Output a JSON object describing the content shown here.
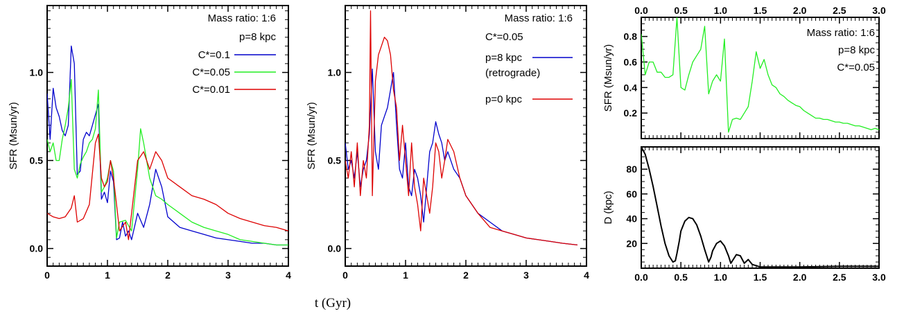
{
  "figure": {
    "xlabel": "t (Gyr)"
  },
  "colors": {
    "blue": "#0000cc",
    "green": "#22ee22",
    "red": "#dd0000",
    "black": "#000000"
  },
  "chart_data": [
    {
      "id": "p1",
      "type": "line",
      "ylabel": "SFR (Msun/yr)",
      "xlim": [
        0,
        4
      ],
      "ylim": [
        -0.1,
        1.38
      ],
      "xticks": [
        "0",
        "1",
        "2",
        "3",
        "4"
      ],
      "yticks": [
        "0.0",
        "0.5",
        "1.0"
      ],
      "annotations": [
        "Mass ratio: 1:6",
        "p=8 kpc"
      ],
      "legend_position": "top-right",
      "series": [
        {
          "name": "C*=0.1",
          "color": "blue",
          "x": [
            0,
            0.05,
            0.1,
            0.15,
            0.2,
            0.25,
            0.3,
            0.35,
            0.4,
            0.45,
            0.5,
            0.55,
            0.6,
            0.65,
            0.7,
            0.75,
            0.8,
            0.85,
            0.9,
            0.95,
            1.0,
            1.05,
            1.1,
            1.15,
            1.2,
            1.25,
            1.3,
            1.35,
            1.4,
            1.5,
            1.6,
            1.7,
            1.8,
            1.9,
            2.0,
            2.2,
            2.4,
            2.6,
            2.8,
            3.0,
            3.2,
            3.4,
            3.6,
            3.8,
            4.0
          ],
          "y": [
            0.88,
            0.62,
            0.91,
            0.8,
            0.75,
            0.67,
            0.64,
            0.7,
            1.15,
            1.05,
            0.42,
            0.44,
            0.62,
            0.66,
            0.64,
            0.7,
            0.76,
            0.82,
            0.28,
            0.32,
            0.26,
            0.44,
            0.38,
            0.05,
            0.06,
            0.15,
            0.07,
            0.1,
            0.05,
            0.2,
            0.12,
            0.25,
            0.45,
            0.35,
            0.18,
            0.12,
            0.1,
            0.08,
            0.06,
            0.05,
            0.04,
            0.03,
            0.03,
            0.02,
            0.02
          ]
        },
        {
          "name": "C*=0.05",
          "color": "green",
          "x": [
            0,
            0.05,
            0.1,
            0.15,
            0.2,
            0.25,
            0.3,
            0.35,
            0.4,
            0.45,
            0.5,
            0.55,
            0.6,
            0.65,
            0.7,
            0.75,
            0.8,
            0.85,
            0.9,
            0.95,
            1.0,
            1.05,
            1.1,
            1.15,
            1.2,
            1.3,
            1.4,
            1.5,
            1.55,
            1.6,
            1.7,
            1.8,
            1.9,
            2.0,
            2.2,
            2.4,
            2.6,
            2.8,
            3.0,
            3.2,
            3.4,
            3.6,
            3.8,
            4.0
          ],
          "y": [
            0.62,
            0.55,
            0.6,
            0.5,
            0.5,
            0.62,
            0.7,
            0.8,
            0.96,
            0.45,
            0.4,
            0.48,
            0.52,
            0.55,
            0.6,
            0.62,
            0.68,
            0.9,
            0.32,
            0.35,
            0.4,
            0.5,
            0.44,
            0.06,
            0.15,
            0.16,
            0.1,
            0.45,
            0.68,
            0.6,
            0.4,
            0.3,
            0.28,
            0.25,
            0.2,
            0.15,
            0.12,
            0.1,
            0.08,
            0.05,
            0.04,
            0.03,
            0.02,
            0.02
          ]
        },
        {
          "name": "C*=0.01",
          "color": "red",
          "x": [
            0,
            0.1,
            0.2,
            0.3,
            0.4,
            0.45,
            0.5,
            0.6,
            0.7,
            0.8,
            0.85,
            0.9,
            0.95,
            1.0,
            1.05,
            1.1,
            1.15,
            1.2,
            1.3,
            1.35,
            1.4,
            1.5,
            1.6,
            1.7,
            1.8,
            1.9,
            2.0,
            2.2,
            2.4,
            2.6,
            2.8,
            3.0,
            3.2,
            3.4,
            3.6,
            3.8,
            4.0
          ],
          "y": [
            0.2,
            0.18,
            0.17,
            0.18,
            0.23,
            0.3,
            0.15,
            0.17,
            0.25,
            0.6,
            0.65,
            0.4,
            0.35,
            0.38,
            0.5,
            0.4,
            0.25,
            0.1,
            0.15,
            0.05,
            0.2,
            0.5,
            0.55,
            0.45,
            0.55,
            0.5,
            0.4,
            0.35,
            0.3,
            0.28,
            0.25,
            0.2,
            0.17,
            0.15,
            0.13,
            0.12,
            0.1
          ]
        }
      ]
    },
    {
      "id": "p2",
      "type": "line",
      "ylabel": "SFR (Msun/yr)",
      "xlim": [
        0,
        4
      ],
      "ylim": [
        -0.1,
        1.38
      ],
      "xticks": [
        "0",
        "1",
        "2",
        "3",
        "4"
      ],
      "yticks": [
        "0.0",
        "0.5",
        "1.0"
      ],
      "annotations": [
        "Mass ratio: 1:6",
        "C*=0.05"
      ],
      "legend_position": "top-right",
      "series": [
        {
          "name": "p=8 kpc (retrograde)",
          "color": "blue",
          "x": [
            0,
            0.05,
            0.1,
            0.15,
            0.2,
            0.25,
            0.3,
            0.35,
            0.4,
            0.45,
            0.5,
            0.55,
            0.6,
            0.65,
            0.7,
            0.75,
            0.8,
            0.85,
            0.9,
            0.95,
            1.0,
            1.05,
            1.1,
            1.15,
            1.2,
            1.25,
            1.3,
            1.35,
            1.4,
            1.45,
            1.5,
            1.55,
            1.6,
            1.65,
            1.7,
            1.8,
            1.9,
            2.0,
            2.2,
            2.4,
            2.6,
            2.8,
            3.0,
            3.2,
            3.4,
            3.6,
            3.85
          ],
          "y": [
            0.6,
            0.45,
            0.5,
            0.4,
            0.55,
            0.35,
            0.45,
            0.5,
            0.65,
            1.02,
            0.55,
            0.45,
            0.7,
            0.75,
            0.8,
            0.9,
            1.0,
            0.7,
            0.45,
            0.4,
            0.6,
            0.35,
            0.3,
            0.45,
            0.4,
            0.3,
            0.15,
            0.35,
            0.55,
            0.6,
            0.72,
            0.65,
            0.6,
            0.5,
            0.55,
            0.45,
            0.4,
            0.3,
            0.2,
            0.15,
            0.1,
            0.08,
            0.06,
            0.05,
            0.04,
            0.03,
            0.02
          ]
        },
        {
          "name": "p=0 kpc",
          "color": "red",
          "x": [
            0,
            0.05,
            0.1,
            0.15,
            0.2,
            0.25,
            0.3,
            0.35,
            0.4,
            0.42,
            0.45,
            0.5,
            0.55,
            0.6,
            0.65,
            0.7,
            0.75,
            0.8,
            0.85,
            0.9,
            0.95,
            1.0,
            1.05,
            1.1,
            1.15,
            1.2,
            1.25,
            1.3,
            1.35,
            1.4,
            1.45,
            1.5,
            1.55,
            1.6,
            1.65,
            1.7,
            1.8,
            1.9,
            2.0,
            2.2,
            2.4,
            2.6,
            2.8,
            3.0,
            3.2,
            3.4,
            3.6,
            3.85
          ],
          "y": [
            0.5,
            0.4,
            0.55,
            0.35,
            0.6,
            0.3,
            0.5,
            0.4,
            0.7,
            1.35,
            0.3,
            0.95,
            1.1,
            1.15,
            1.2,
            1.18,
            1.1,
            0.9,
            0.8,
            0.5,
            0.7,
            0.5,
            0.3,
            0.6,
            0.35,
            0.25,
            0.1,
            0.4,
            0.3,
            0.2,
            0.35,
            0.6,
            0.55,
            0.4,
            0.5,
            0.62,
            0.55,
            0.4,
            0.3,
            0.2,
            0.12,
            0.1,
            0.08,
            0.06,
            0.05,
            0.04,
            0.03,
            0.02
          ]
        }
      ]
    },
    {
      "id": "p3",
      "type": "line",
      "ylabel": "SFR (Msun/yr)",
      "xlim": [
        0,
        3
      ],
      "ylim": [
        0,
        0.95
      ],
      "xticks": [
        "0.0",
        "0.5",
        "1.0",
        "1.5",
        "2.0",
        "2.5",
        "3.0"
      ],
      "yticks": [
        "0.2",
        "0.4",
        "0.6",
        "0.8"
      ],
      "annotations": [
        "Mass ratio: 1:6",
        "p=8 kpc",
        "C*=0.05"
      ],
      "series": [
        {
          "name": "",
          "color": "green",
          "x": [
            0,
            0.05,
            0.1,
            0.15,
            0.2,
            0.25,
            0.3,
            0.35,
            0.4,
            0.45,
            0.5,
            0.55,
            0.6,
            0.65,
            0.7,
            0.75,
            0.8,
            0.85,
            0.9,
            0.95,
            1.0,
            1.05,
            1.1,
            1.15,
            1.2,
            1.25,
            1.3,
            1.35,
            1.4,
            1.45,
            1.5,
            1.55,
            1.6,
            1.65,
            1.7,
            1.75,
            1.8,
            1.85,
            1.9,
            1.95,
            2.0,
            2.05,
            2.1,
            2.15,
            2.2,
            2.25,
            2.3,
            2.35,
            2.4,
            2.45,
            2.5,
            2.55,
            2.6,
            2.65,
            2.7,
            2.75,
            2.8,
            2.85,
            2.9,
            2.95,
            3.0
          ],
          "y": [
            0.82,
            0.5,
            0.6,
            0.6,
            0.52,
            0.52,
            0.48,
            0.48,
            0.5,
            0.95,
            0.4,
            0.38,
            0.5,
            0.6,
            0.65,
            0.7,
            0.88,
            0.35,
            0.45,
            0.5,
            0.45,
            0.78,
            0.05,
            0.15,
            0.16,
            0.15,
            0.2,
            0.25,
            0.45,
            0.68,
            0.55,
            0.62,
            0.5,
            0.42,
            0.4,
            0.35,
            0.33,
            0.3,
            0.28,
            0.26,
            0.25,
            0.22,
            0.2,
            0.18,
            0.16,
            0.16,
            0.15,
            0.15,
            0.14,
            0.13,
            0.13,
            0.12,
            0.12,
            0.11,
            0.1,
            0.1,
            0.09,
            0.08,
            0.07,
            0.08,
            0.07
          ]
        }
      ]
    },
    {
      "id": "p4",
      "type": "line",
      "ylabel": "D (kpc)",
      "xlim": [
        0,
        3
      ],
      "ylim": [
        0,
        98
      ],
      "xticks": [
        "0.0",
        "0.5",
        "1.0",
        "1.5",
        "2.0",
        "2.5",
        "3.0"
      ],
      "yticks": [
        "20",
        "40",
        "60",
        "80"
      ],
      "series": [
        {
          "name": "",
          "color": "black",
          "x": [
            0,
            0.05,
            0.1,
            0.15,
            0.2,
            0.25,
            0.3,
            0.35,
            0.4,
            0.43,
            0.45,
            0.48,
            0.5,
            0.55,
            0.6,
            0.65,
            0.7,
            0.75,
            0.8,
            0.85,
            0.88,
            0.9,
            0.95,
            1.0,
            1.05,
            1.1,
            1.13,
            1.15,
            1.2,
            1.25,
            1.3,
            1.35,
            1.4,
            1.5,
            2.0,
            2.5,
            3.0
          ],
          "y": [
            98,
            92,
            80,
            66,
            50,
            34,
            20,
            10,
            5,
            6,
            12,
            22,
            30,
            38,
            41,
            40,
            35,
            26,
            15,
            5,
            9,
            14,
            20,
            22,
            18,
            10,
            4,
            6,
            11,
            10,
            4,
            7,
            3,
            1,
            1,
            1.5,
            1.5
          ]
        }
      ]
    }
  ]
}
